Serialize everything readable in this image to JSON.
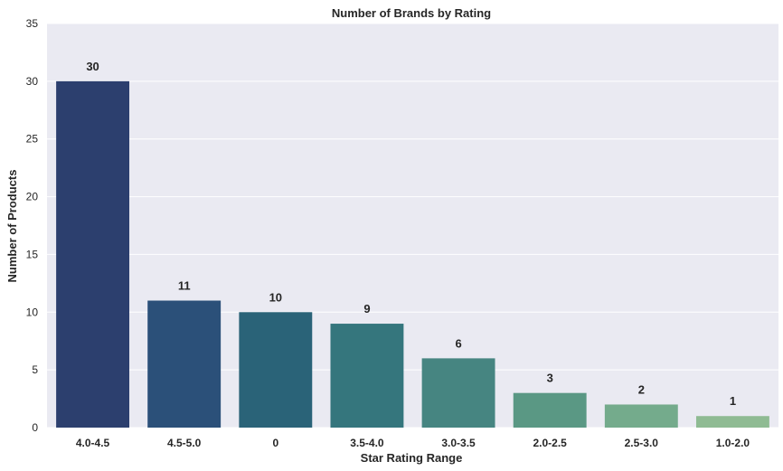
{
  "chart_data": {
    "type": "bar",
    "title": "Number of Brands by Rating",
    "xlabel": "Star Rating Range",
    "ylabel": "Number of Products",
    "categories": [
      "4.0-4.5",
      "4.5-5.0",
      "0",
      "3.5-4.0",
      "3.0-3.5",
      "2.0-2.5",
      "2.5-3.0",
      "1.0-2.0"
    ],
    "values": [
      30,
      11,
      10,
      9,
      6,
      3,
      2,
      1
    ],
    "ylim": [
      0,
      35
    ],
    "yticks": [
      0,
      5,
      10,
      15,
      20,
      25,
      30,
      35
    ],
    "grid": true,
    "bar_colors": [
      "#2c3f6e",
      "#2b5079",
      "#2a6378",
      "#35767d",
      "#468581",
      "#5a9884",
      "#74ab8c",
      "#8fbb93"
    ],
    "background_color": "#eaeaf2",
    "grid_color": "#ffffff"
  }
}
